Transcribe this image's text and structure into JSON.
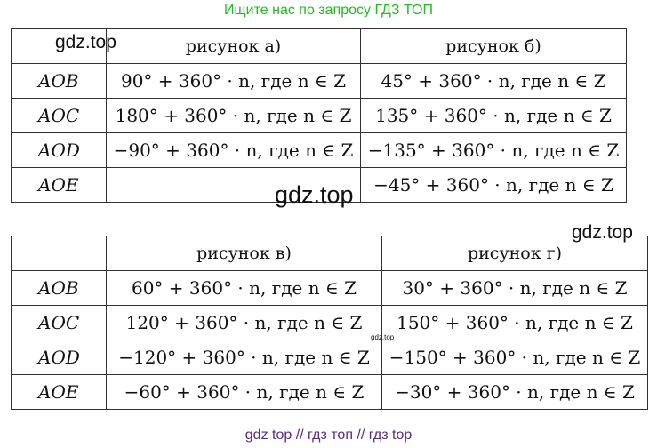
{
  "banner": "Ищите нас по запросу ГДЗ ТОП",
  "footer": "gdz top  //  гдз топ  //  гдз top",
  "watermarks": [
    "gdz.top",
    "gdz.top",
    "gdz.top",
    "gdz.top"
  ],
  "table1": {
    "headers": [
      "",
      "рисунок а)",
      "рисунок б)"
    ],
    "rows": [
      {
        "label": "AOB",
        "a": "90° + 360° · n, где n ∈ Z",
        "b": "45° + 360° · n, где n ∈ Z"
      },
      {
        "label": "AOC",
        "a": "180° + 360° · n, где n ∈ Z",
        "b": "135° + 360° · n, где n ∈ Z"
      },
      {
        "label": "AOD",
        "a": "−90° + 360° · n, где n ∈ Z",
        "b": "−135° + 360° · n, где n ∈ Z"
      },
      {
        "label": "AOE",
        "a": "",
        "b": "−45° + 360° · n, где n ∈ Z"
      }
    ]
  },
  "table2": {
    "headers": [
      "",
      "рисунок в)",
      "рисунок г)"
    ],
    "rows": [
      {
        "label": "AOB",
        "a": "60° + 360° · n, где n ∈ Z",
        "b": "30° + 360° · n, где n ∈ Z"
      },
      {
        "label": "AOC",
        "a": "120° + 360° · n, где n ∈ Z",
        "b": "150° + 360° · n, где n ∈ Z"
      },
      {
        "label": "AOD",
        "a": "−120° + 360° · n, где n ∈ Z",
        "b": "−150° + 360° · n, где n ∈ Z"
      },
      {
        "label": "AOE",
        "a": "−60° + 360° · n, где n ∈ Z",
        "b": "−30° + 360° · n, где n ∈ Z"
      }
    ]
  }
}
